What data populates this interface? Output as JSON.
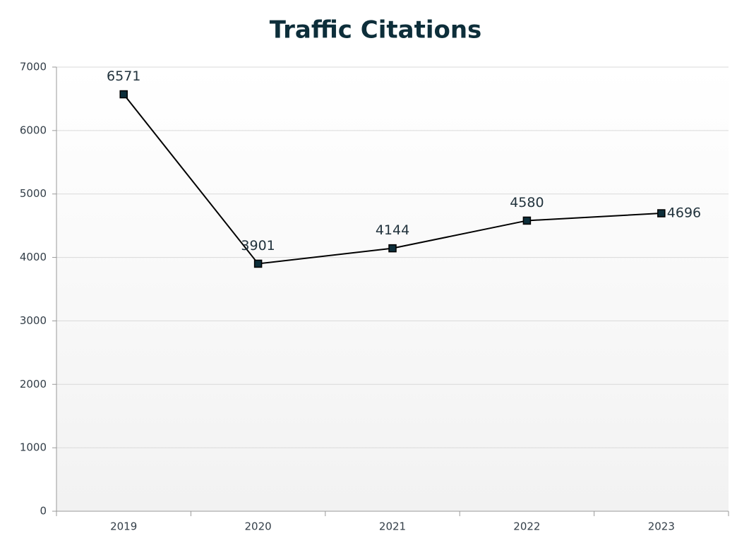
{
  "chart_data": {
    "type": "line",
    "title": "Traffic Citations",
    "categories": [
      "2019",
      "2020",
      "2021",
      "2022",
      "2023"
    ],
    "series": [
      {
        "name": "Traffic Citations",
        "color": "#000000",
        "marker_color": "#0d2e3a",
        "values": [
          6571,
          3901,
          4144,
          4580,
          4696
        ]
      }
    ],
    "ylim": [
      0,
      7000
    ],
    "yticks": [
      0,
      1000,
      2000,
      3000,
      4000,
      5000,
      6000,
      7000
    ],
    "grid": true
  }
}
